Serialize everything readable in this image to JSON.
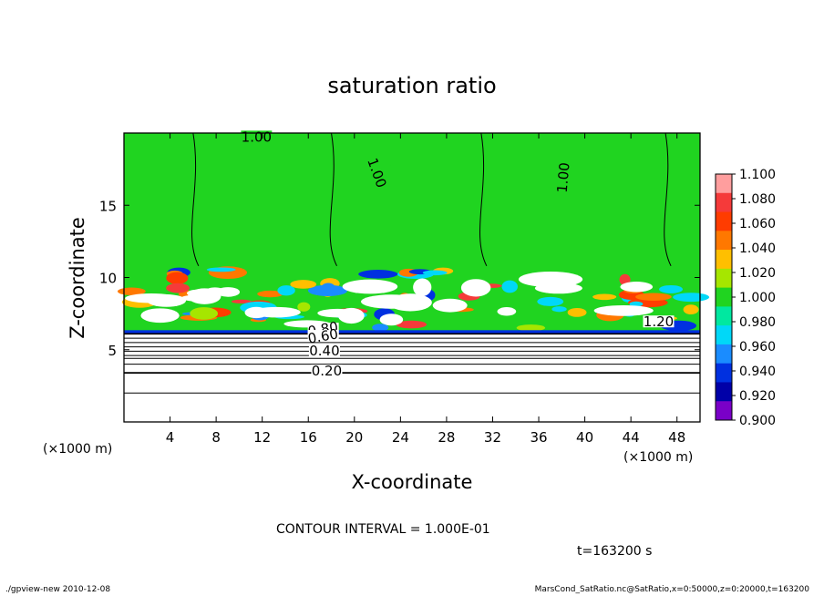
{
  "chart_data": {
    "type": "heatmap",
    "title": "saturation ratio",
    "xlabel": "X-coordinate",
    "ylabel": "Z-coordinate",
    "x_units": "(×1000 m)",
    "y_units": "(×1000 m)",
    "xlim": [
      0,
      50
    ],
    "ylim": [
      0,
      20
    ],
    "x_ticks": [
      "4",
      "8",
      "12",
      "16",
      "20",
      "24",
      "28",
      "32",
      "36",
      "40",
      "44",
      "48"
    ],
    "y_ticks": [
      "5",
      "10",
      "15"
    ],
    "colorbar": {
      "levels": [
        "1.100",
        "1.080",
        "1.060",
        "1.040",
        "1.020",
        "1.000",
        "0.980",
        "0.960",
        "0.940",
        "0.920",
        "0.900"
      ],
      "colors": [
        "#ff9e9e",
        "#f53a3a",
        "#ff3c00",
        "#ff7800",
        "#ffbf00",
        "#a6e600",
        "#20d420",
        "#00e8a0",
        "#00d8f8",
        "#1a8cff",
        "#0030e0",
        "#0000a8",
        "#7a00c8"
      ]
    },
    "contour_labels": [
      "1.00",
      "1.00",
      "1.00",
      "1.20",
      "0.80",
      "0.60",
      "0.40",
      "0.20"
    ],
    "contour_interval": "CONTOUR INTERVAL = 1.000E-01",
    "time": "t=163200 s"
  },
  "footer": {
    "left": "./gpview-new  2010-12-08",
    "right": "MarsCond_SatRatio.nc@SatRatio,x=0:50000,z=0:20000,t=163200"
  }
}
